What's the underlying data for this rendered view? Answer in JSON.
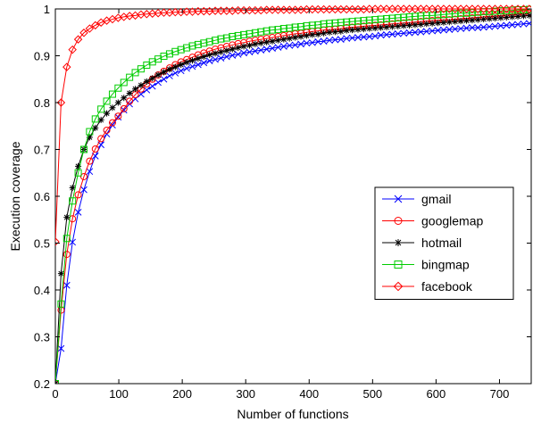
{
  "chart_data": {
    "type": "line",
    "title": "",
    "xlabel": "Number of functions",
    "ylabel": "Execution coverage",
    "xlim": [
      0,
      750
    ],
    "ylim": [
      0.2,
      1
    ],
    "xticks": [
      "0",
      "100",
      "200",
      "300",
      "400",
      "500",
      "600",
      "700"
    ],
    "yticks": [
      "0.2",
      "0.3",
      "0.4",
      "0.5",
      "0.6",
      "0.7",
      "0.8",
      "0.9",
      "1"
    ],
    "xtick_values": [
      0,
      100,
      200,
      300,
      400,
      500,
      600,
      700
    ],
    "ytick_values": [
      0.2,
      0.3,
      0.4,
      0.5,
      0.6,
      0.7,
      0.8,
      0.9,
      1.0
    ],
    "grid": false,
    "legend_position": "center-right",
    "x": [
      0,
      9,
      18,
      27,
      36,
      45,
      54,
      63,
      72,
      81,
      90,
      99,
      108,
      117,
      126,
      135,
      144,
      153,
      162,
      171,
      180,
      189,
      198,
      207,
      216,
      225,
      234,
      243,
      252,
      261,
      270,
      279,
      288,
      297,
      306,
      315,
      324,
      333,
      342,
      351,
      360,
      369,
      378,
      387,
      396,
      405,
      414,
      423,
      432,
      441,
      450,
      459,
      468,
      477,
      486,
      495,
      504,
      513,
      522,
      531,
      540,
      549,
      558,
      567,
      576,
      585,
      594,
      603,
      612,
      621,
      630,
      639,
      648,
      657,
      666,
      675,
      684,
      693,
      702,
      711,
      720,
      729,
      738,
      747
    ],
    "series": [
      {
        "name": "gmail",
        "color": "#0000ff",
        "marker": "x",
        "values": [
          0.2,
          0.275,
          0.41,
          0.502,
          0.566,
          0.614,
          0.653,
          0.686,
          0.71,
          0.733,
          0.752,
          0.769,
          0.784,
          0.797,
          0.808,
          0.818,
          0.827,
          0.835,
          0.843,
          0.85,
          0.857,
          0.863,
          0.868,
          0.873,
          0.877,
          0.881,
          0.885,
          0.889,
          0.892,
          0.895,
          0.898,
          0.901,
          0.903,
          0.906,
          0.908,
          0.91,
          0.912,
          0.914,
          0.916,
          0.918,
          0.92,
          0.922,
          0.923,
          0.925,
          0.927,
          0.928,
          0.93,
          0.931,
          0.933,
          0.934,
          0.935,
          0.937,
          0.938,
          0.939,
          0.94,
          0.941,
          0.942,
          0.944,
          0.945,
          0.946,
          0.947,
          0.948,
          0.949,
          0.95,
          0.951,
          0.952,
          0.953,
          0.954,
          0.955,
          0.956,
          0.957,
          0.958,
          0.959,
          0.96,
          0.96,
          0.961,
          0.962,
          0.963,
          0.964,
          0.965,
          0.966,
          0.967,
          0.968,
          0.969
        ]
      },
      {
        "name": "googlemap",
        "color": "#ff0000",
        "marker": "o",
        "values": [
          0.2,
          0.357,
          0.476,
          0.552,
          0.603,
          0.642,
          0.675,
          0.701,
          0.723,
          0.741,
          0.757,
          0.771,
          0.787,
          0.803,
          0.817,
          0.829,
          0.84,
          0.85,
          0.859,
          0.867,
          0.874,
          0.881,
          0.887,
          0.892,
          0.897,
          0.902,
          0.906,
          0.91,
          0.914,
          0.917,
          0.92,
          0.923,
          0.926,
          0.928,
          0.931,
          0.933,
          0.935,
          0.937,
          0.939,
          0.941,
          0.943,
          0.945,
          0.947,
          0.948,
          0.95,
          0.952,
          0.953,
          0.955,
          0.956,
          0.957,
          0.958,
          0.96,
          0.961,
          0.962,
          0.963,
          0.964,
          0.965,
          0.966,
          0.967,
          0.968,
          0.969,
          0.97,
          0.971,
          0.972,
          0.973,
          0.974,
          0.975,
          0.976,
          0.977,
          0.977,
          0.978,
          0.979,
          0.98,
          0.981,
          0.982,
          0.983,
          0.984,
          0.985,
          0.986,
          0.987,
          0.988,
          0.989,
          0.99,
          0.991
        ]
      },
      {
        "name": "hotmail",
        "color": "#000000",
        "marker": "*",
        "values": [
          0.2,
          0.435,
          0.555,
          0.618,
          0.664,
          0.7,
          0.726,
          0.746,
          0.763,
          0.777,
          0.789,
          0.8,
          0.81,
          0.82,
          0.829,
          0.837,
          0.845,
          0.852,
          0.859,
          0.865,
          0.871,
          0.876,
          0.881,
          0.886,
          0.89,
          0.894,
          0.898,
          0.902,
          0.905,
          0.908,
          0.911,
          0.914,
          0.917,
          0.92,
          0.922,
          0.925,
          0.927,
          0.929,
          0.931,
          0.933,
          0.935,
          0.937,
          0.939,
          0.941,
          0.943,
          0.945,
          0.946,
          0.948,
          0.95,
          0.951,
          0.952,
          0.954,
          0.955,
          0.956,
          0.957,
          0.958,
          0.959,
          0.96,
          0.961,
          0.962,
          0.963,
          0.964,
          0.965,
          0.966,
          0.967,
          0.968,
          0.969,
          0.97,
          0.971,
          0.972,
          0.973,
          0.974,
          0.975,
          0.976,
          0.977,
          0.978,
          0.979,
          0.98,
          0.981,
          0.982,
          0.983,
          0.984,
          0.985,
          0.986
        ]
      },
      {
        "name": "bingmap",
        "color": "#00cc00",
        "marker": "square",
        "values": [
          0.2,
          0.37,
          0.51,
          0.59,
          0.65,
          0.7,
          0.738,
          0.765,
          0.786,
          0.803,
          0.818,
          0.831,
          0.843,
          0.854,
          0.864,
          0.872,
          0.88,
          0.887,
          0.893,
          0.899,
          0.904,
          0.909,
          0.913,
          0.917,
          0.921,
          0.924,
          0.927,
          0.93,
          0.933,
          0.936,
          0.938,
          0.941,
          0.943,
          0.945,
          0.947,
          0.949,
          0.951,
          0.953,
          0.955,
          0.956,
          0.958,
          0.959,
          0.961,
          0.962,
          0.964,
          0.965,
          0.966,
          0.968,
          0.969,
          0.97,
          0.971,
          0.972,
          0.973,
          0.974,
          0.975,
          0.976,
          0.977,
          0.978,
          0.979,
          0.98,
          0.981,
          0.982,
          0.983,
          0.984,
          0.985,
          0.986,
          0.986,
          0.987,
          0.988,
          0.989,
          0.99,
          0.991,
          0.991,
          0.992,
          0.993,
          0.994,
          0.994,
          0.995,
          0.996,
          0.996,
          0.997,
          0.998,
          0.998,
          0.999
        ]
      },
      {
        "name": "facebook",
        "color": "#ff0000",
        "marker": "diamond",
        "values": [
          0.503,
          0.8,
          0.876,
          0.913,
          0.935,
          0.949,
          0.958,
          0.965,
          0.971,
          0.975,
          0.978,
          0.981,
          0.983,
          0.985,
          0.986,
          0.988,
          0.989,
          0.99,
          0.991,
          0.992,
          0.992,
          0.993,
          0.993,
          0.994,
          0.994,
          0.995,
          0.995,
          0.995,
          0.996,
          0.996,
          0.996,
          0.996,
          0.997,
          0.997,
          0.997,
          0.997,
          0.997,
          0.998,
          0.998,
          0.998,
          0.998,
          0.998,
          0.998,
          0.998,
          0.999,
          0.999,
          0.999,
          0.999,
          0.999,
          0.999,
          0.999,
          0.999,
          0.999,
          0.999,
          0.999,
          1.0,
          1.0,
          1.0,
          1.0,
          1.0,
          1.0,
          1.0,
          1.0,
          1.0,
          1.0,
          1.0,
          1.0,
          1.0,
          1.0,
          1.0,
          1.0,
          1.0,
          1.0,
          1.0,
          1.0,
          1.0,
          1.0,
          1.0,
          1.0,
          1.0,
          1.0,
          1.0,
          1.0,
          1.0
        ]
      }
    ]
  }
}
